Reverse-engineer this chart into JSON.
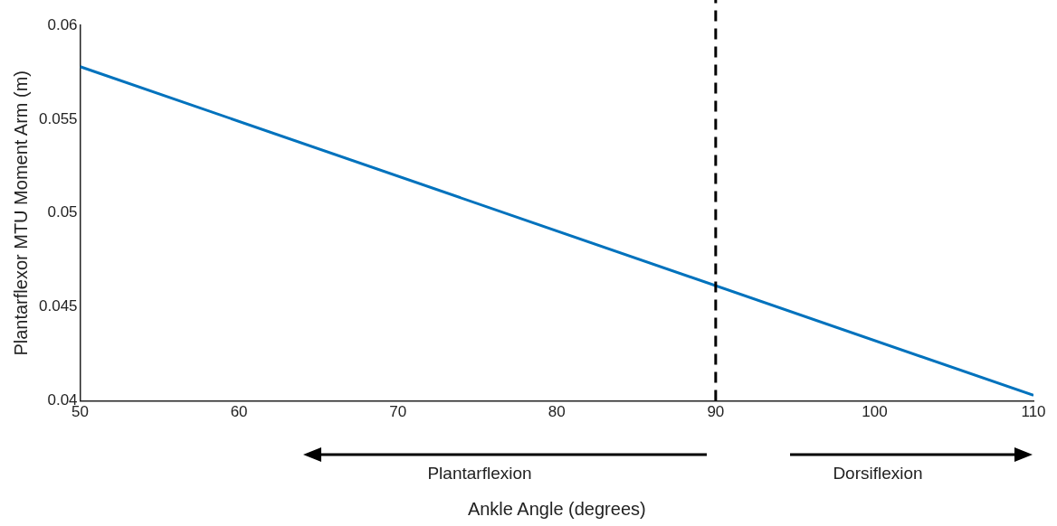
{
  "chart_data": {
    "type": "line",
    "xlabel": "Ankle Angle (degrees)",
    "ylabel": "Plantarflexor MTU Moment Arm (m)",
    "x": [
      50,
      110
    ],
    "series": [
      {
        "color": "#0072bd",
        "values": [
          0.0578,
          0.0403
        ]
      }
    ],
    "xlim": [
      50,
      110
    ],
    "xticks": [
      50,
      60,
      70,
      80,
      90,
      100,
      110
    ],
    "ylim": [
      0.04,
      0.06
    ],
    "yticks": [
      0.04,
      0.045,
      0.05,
      0.055,
      0.06
    ],
    "grid": false,
    "legend": false,
    "marker": "none",
    "line_style": "solid",
    "ref_lines": [
      {
        "axis": "x",
        "value": 90,
        "color": "#000000",
        "line_style": "dashed"
      }
    ],
    "annotations": [
      "Plantarflexion",
      "Dorsiflexion"
    ]
  }
}
